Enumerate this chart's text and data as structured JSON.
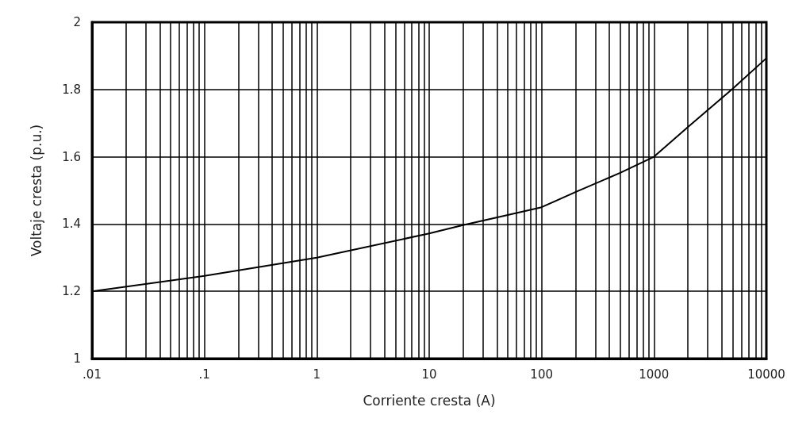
{
  "chart_data": {
    "type": "line",
    "xlabel": "Corriente cresta (A)",
    "ylabel": "Voltaje cresta (p.u.)",
    "x": [
      0.01,
      0.1,
      1,
      10,
      20,
      50,
      100,
      200,
      500,
      1000,
      2000,
      5000,
      10000
    ],
    "values": [
      1.2,
      1.246,
      1.3,
      1.372,
      1.397,
      1.427,
      1.45,
      1.495,
      1.552,
      1.6,
      1.688,
      1.802,
      1.893
    ],
    "color": "#000000",
    "marker": "none",
    "line_style": "solid",
    "log": "x",
    "grid": true,
    "xlim": [
      0.01,
      10000
    ],
    "ylim": [
      1,
      2
    ],
    "yticks": [
      1,
      1.2,
      1.4,
      1.6,
      1.8,
      2
    ],
    "xticks": [
      {
        "value": 0.01,
        "label": ".01"
      },
      {
        "value": 0.02,
        "label": null
      },
      {
        "value": 0.03,
        "label": null
      },
      {
        "value": 0.04,
        "label": null
      },
      {
        "value": 0.05,
        "label": null
      },
      {
        "value": 0.06,
        "label": null
      },
      {
        "value": 0.07,
        "label": null
      },
      {
        "value": 0.08,
        "label": null
      },
      {
        "value": 0.09,
        "label": null
      },
      {
        "value": 0.1,
        "label": ".1"
      },
      {
        "value": 0.2,
        "label": null
      },
      {
        "value": 0.3,
        "label": null
      },
      {
        "value": 0.4,
        "label": null
      },
      {
        "value": 0.5,
        "label": null
      },
      {
        "value": 0.6,
        "label": null
      },
      {
        "value": 0.7,
        "label": null
      },
      {
        "value": 0.8,
        "label": null
      },
      {
        "value": 0.9,
        "label": null
      },
      1,
      {
        "value": 2,
        "label": null
      },
      {
        "value": 3,
        "label": null
      },
      {
        "value": 4,
        "label": null
      },
      {
        "value": 5,
        "label": null
      },
      {
        "value": 6,
        "label": null
      },
      {
        "value": 7,
        "label": null
      },
      {
        "value": 8,
        "label": null
      },
      {
        "value": 9,
        "label": null
      },
      10,
      {
        "value": 20,
        "label": null
      },
      {
        "value": 30,
        "label": null
      },
      {
        "value": 40,
        "label": null
      },
      {
        "value": 50,
        "label": null
      },
      {
        "value": 60,
        "label": null
      },
      {
        "value": 70,
        "label": null
      },
      {
        "value": 80,
        "label": null
      },
      {
        "value": 90,
        "label": null
      },
      100,
      {
        "value": 200,
        "label": null
      },
      {
        "value": 300,
        "label": null
      },
      {
        "value": 400,
        "label": null
      },
      {
        "value": 500,
        "label": null
      },
      {
        "value": 600,
        "label": null
      },
      {
        "value": 700,
        "label": null
      },
      {
        "value": 800,
        "label": null
      },
      {
        "value": 900,
        "label": null
      },
      1000,
      {
        "value": 2000,
        "label": null
      },
      {
        "value": 3000,
        "label": null
      },
      {
        "value": 4000,
        "label": null
      },
      {
        "value": 5000,
        "label": null
      },
      {
        "value": 6000,
        "label": null
      },
      {
        "value": 7000,
        "label": null
      },
      {
        "value": 8000,
        "label": null
      },
      {
        "value": 9000,
        "label": null
      },
      10000
    ]
  }
}
